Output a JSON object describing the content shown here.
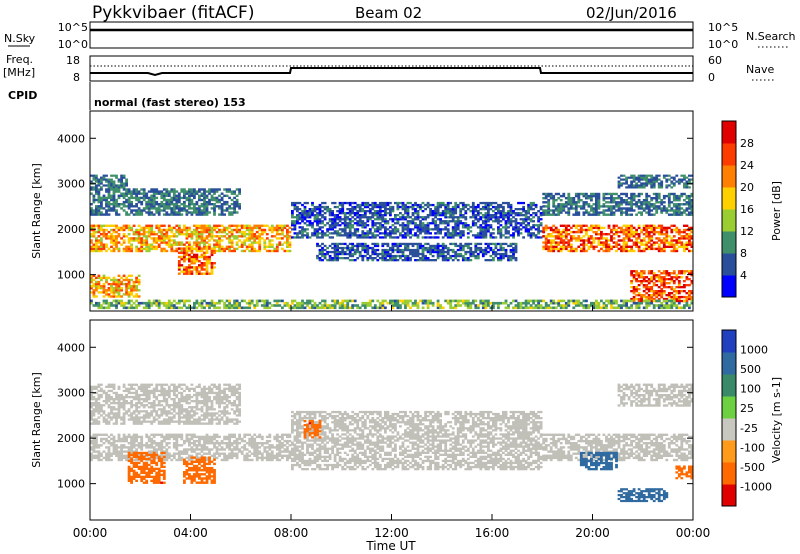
{
  "header": {
    "station": "Pykkvibaer (fitACF)",
    "beam": "Beam 02",
    "date": "02/Jun/2016"
  },
  "nsky_panel": {
    "left_label": "N.Sky",
    "right_label": "N.Search",
    "left_ticks": [
      "10^5",
      "10^0"
    ],
    "right_ticks": [
      "10^5",
      "10^0"
    ]
  },
  "freq_panel": {
    "left_label_1": "Freq.",
    "left_label_2": "[MHz]",
    "right_label": "Nave",
    "left_ticks": [
      "18",
      "8"
    ],
    "right_ticks": [
      "60",
      "0"
    ],
    "cpid_label": "CPID",
    "cpid_text": "normal (fast stereo) 153"
  },
  "colors": {
    "power_scale": [
      "#0000ff",
      "#2a4f9a",
      "#3f8f6a",
      "#9acd32",
      "#ffd000",
      "#ff8000",
      "#ff3c00",
      "#e00000"
    ],
    "velocity_scale": [
      "#2040c0",
      "#2f6aa0",
      "#3a8a6a",
      "#6cd040",
      "#c8c8c0",
      "#ff9a1a",
      "#ff6a00",
      "#e00000"
    ],
    "ground_scatter": "#c0c0b8"
  },
  "chart_data": [
    {
      "type": "line",
      "panel": "N.Sky / N.Search",
      "x": [
        "00:00",
        "04:00",
        "08:00",
        "12:00",
        "16:00",
        "20:00",
        "00:00"
      ],
      "series": [
        {
          "name": "N.Sky",
          "values": [
            20000,
            20000,
            20000,
            20000,
            20000,
            20000,
            20000
          ]
        },
        {
          "name": "N.Search",
          "values": [
            20000,
            20000,
            20000,
            20000,
            20000,
            20000,
            20000
          ]
        }
      ],
      "yscale": "log",
      "ylim": [
        1,
        100000
      ]
    },
    {
      "type": "line",
      "panel": "Freq. / Nave",
      "x": [
        "00:00",
        "02:00",
        "02:20",
        "03:10",
        "08:00",
        "08:05",
        "18:00",
        "18:05",
        "24:00"
      ],
      "series": [
        {
          "name": "Freq. [MHz]",
          "values": [
            10.5,
            10.5,
            9.5,
            10.5,
            10.5,
            12.6,
            12.6,
            10.5,
            10.5
          ]
        },
        {
          "name": "Nave",
          "values": [
            40,
            40,
            40,
            40,
            40,
            40,
            40,
            40,
            40
          ]
        }
      ],
      "ylim": [
        8,
        18
      ],
      "y2lim": [
        0,
        60
      ]
    },
    {
      "type": "heatmap",
      "panel": "Power",
      "xlabel": "",
      "ylabel": "Slant Range [km]",
      "x_ticks": [
        "00:00",
        "04:00",
        "08:00",
        "12:00",
        "16:00",
        "20:00",
        "00:00"
      ],
      "y_ticks": [
        "1000",
        "2000",
        "3000",
        "4000"
      ],
      "ylim": [
        200,
        4600
      ],
      "colorbar_label": "Power [dB]",
      "colorbar_ticks": [
        "4",
        "8",
        "12",
        "16",
        "20",
        "24",
        "28"
      ],
      "regions": [
        {
          "t0": 0.0,
          "t1": 8.0,
          "r0": 1500,
          "r1": 2100,
          "value": 20
        },
        {
          "t0": 0.0,
          "t1": 1.5,
          "r0": 2900,
          "r1": 3200,
          "value": 8
        },
        {
          "t0": 0.0,
          "t1": 6.0,
          "r0": 2300,
          "r1": 2900,
          "value": 8
        },
        {
          "t0": 0.0,
          "t1": 2.0,
          "r0": 500,
          "r1": 1000,
          "value": 20
        },
        {
          "t0": 3.5,
          "t1": 5.0,
          "r0": 1000,
          "r1": 1600,
          "value": 24
        },
        {
          "t0": 8.0,
          "t1": 18.0,
          "r0": 1800,
          "r1": 2600,
          "value": 6
        },
        {
          "t0": 9.0,
          "t1": 17.0,
          "r0": 1300,
          "r1": 1700,
          "value": 6
        },
        {
          "t0": 18.0,
          "t1": 24.0,
          "r0": 1500,
          "r1": 2100,
          "value": 24
        },
        {
          "t0": 18.0,
          "t1": 24.0,
          "r0": 2300,
          "r1": 2800,
          "value": 8
        },
        {
          "t0": 21.0,
          "t1": 24.0,
          "r0": 2900,
          "r1": 3200,
          "value": 8
        },
        {
          "t0": 21.5,
          "t1": 24.0,
          "r0": 400,
          "r1": 1100,
          "value": 26
        },
        {
          "t0": 0.0,
          "t1": 24.0,
          "r0": 250,
          "r1": 450,
          "value": 12
        }
      ]
    },
    {
      "type": "heatmap",
      "panel": "Velocity",
      "xlabel": "Time UT",
      "ylabel": "Slant Range [km]",
      "x_ticks": [
        "00:00",
        "04:00",
        "08:00",
        "12:00",
        "16:00",
        "20:00",
        "00:00"
      ],
      "y_ticks": [
        "1000",
        "2000",
        "3000",
        "4000"
      ],
      "ylim": [
        200,
        4600
      ],
      "colorbar_label": "Velocity [m s-1]",
      "colorbar_ticks": [
        "1000",
        "500",
        "100",
        "25",
        "-25",
        "-100",
        "-500",
        "-1000"
      ],
      "regions": [
        {
          "t0": 0.0,
          "t1": 8.0,
          "r0": 1500,
          "r1": 2100,
          "value": 0,
          "ground_scatter": true
        },
        {
          "t0": 0.0,
          "t1": 6.0,
          "r0": 2300,
          "r1": 3200,
          "value": 0,
          "ground_scatter": true
        },
        {
          "t0": 8.0,
          "t1": 18.0,
          "r0": 1300,
          "r1": 2600,
          "value": 0,
          "ground_scatter": true
        },
        {
          "t0": 18.0,
          "t1": 24.0,
          "r0": 1500,
          "r1": 2100,
          "value": 0,
          "ground_scatter": true
        },
        {
          "t0": 21.0,
          "t1": 24.0,
          "r0": 2700,
          "r1": 3200,
          "value": 0,
          "ground_scatter": true
        },
        {
          "t0": 1.5,
          "t1": 3.0,
          "r0": 1000,
          "r1": 1700,
          "value": -400
        },
        {
          "t0": 3.7,
          "t1": 5.0,
          "r0": 1000,
          "r1": 1600,
          "value": -300
        },
        {
          "t0": 8.5,
          "t1": 9.2,
          "r0": 2000,
          "r1": 2400,
          "value": -400
        },
        {
          "t0": 19.5,
          "t1": 21.0,
          "r0": 1300,
          "r1": 1700,
          "value": 150
        },
        {
          "t0": 21.0,
          "t1": 23.0,
          "r0": 600,
          "r1": 900,
          "value": 300
        },
        {
          "t0": 23.3,
          "t1": 24.0,
          "r0": 1100,
          "r1": 1400,
          "value": -300
        }
      ]
    }
  ]
}
